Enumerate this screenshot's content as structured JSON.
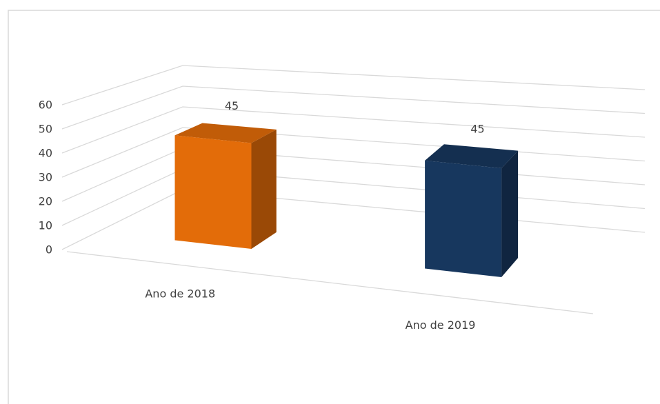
{
  "chart_data": {
    "type": "bar",
    "categories": [
      "Ano de 2018",
      "Ano de 2019"
    ],
    "values": [
      45,
      45
    ],
    "colors": [
      "#e36c09",
      "#17375e"
    ],
    "ylim": [
      0,
      60
    ],
    "yticks": [
      0,
      10,
      20,
      30,
      40,
      50,
      60
    ],
    "grid": true
  }
}
